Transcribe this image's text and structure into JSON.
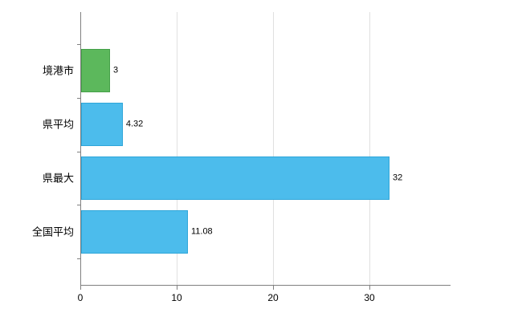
{
  "chart_data": {
    "type": "bar",
    "orientation": "horizontal",
    "title": "",
    "xlabel": "",
    "ylabel": "",
    "categories": [
      "境港市",
      "県平均",
      "県最大",
      "全国平均"
    ],
    "values": [
      3,
      4.32,
      32,
      11.08
    ],
    "value_labels": [
      "3",
      "4.32",
      "32",
      "11.08"
    ],
    "x_ticks": [
      0,
      10,
      20,
      30
    ],
    "x_tick_labels": [
      "0",
      "10",
      "20",
      "30"
    ],
    "xlim": [
      0,
      38.33
    ],
    "grid": true,
    "legend": false,
    "bar_fill_colors": [
      "#5cb85c",
      "#4cbcec",
      "#4cbcec",
      "#4cbcec"
    ],
    "bar_border_colors": [
      "#45a049",
      "#2fa6d9",
      "#2fa6d9",
      "#2fa6d9"
    ],
    "grid_color": "#e0e0e0",
    "axis_color": "#808080",
    "background_color": "#ffffff",
    "text_color": "#000000"
  }
}
